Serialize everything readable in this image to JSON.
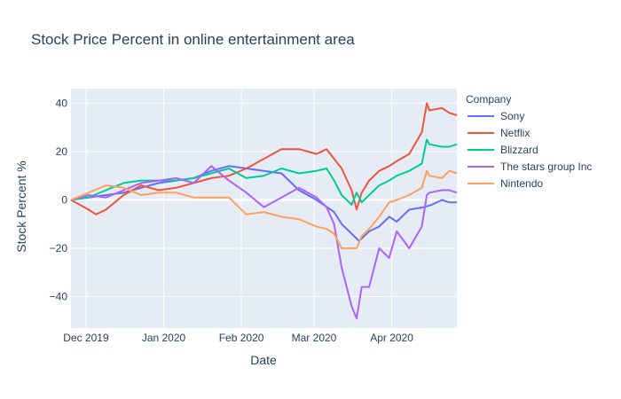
{
  "chart_data": {
    "type": "line",
    "title": "Stock Price Percent in online entertainment area",
    "xlabel": "Date",
    "ylabel": "Stock Percent %",
    "legend_title": "Company",
    "legend_position": "right",
    "grid": true,
    "xlim": [
      "2019-11-25",
      "2020-04-27"
    ],
    "ylim": [
      -53,
      46
    ],
    "x_ticks": [
      {
        "value": "2019-12-01",
        "label": "Dec 2019"
      },
      {
        "value": "2020-01-01",
        "label": "Jan 2020"
      },
      {
        "value": "2020-02-01",
        "label": "Feb 2020"
      },
      {
        "value": "2020-03-01",
        "label": "Mar 2020"
      },
      {
        "value": "2020-04-01",
        "label": "Apr 2020"
      }
    ],
    "y_ticks": [
      -40,
      -20,
      0,
      20,
      40
    ],
    "series": [
      {
        "name": "Sony",
        "color": "#636efa",
        "points": [
          [
            "2019-11-25",
            0
          ],
          [
            "2019-12-02",
            1
          ],
          [
            "2019-12-09",
            2
          ],
          [
            "2019-12-16",
            3
          ],
          [
            "2019-12-23",
            5
          ],
          [
            "2019-12-30",
            7
          ],
          [
            "2020-01-06",
            8
          ],
          [
            "2020-01-13",
            9
          ],
          [
            "2020-01-20",
            12
          ],
          [
            "2020-01-27",
            14
          ],
          [
            "2020-02-03",
            13
          ],
          [
            "2020-02-10",
            12
          ],
          [
            "2020-02-17",
            11
          ],
          [
            "2020-02-24",
            4
          ],
          [
            "2020-03-02",
            0
          ],
          [
            "2020-03-09",
            -5
          ],
          [
            "2020-03-12",
            -10
          ],
          [
            "2020-03-16",
            -14
          ],
          [
            "2020-03-19",
            -17
          ],
          [
            "2020-03-23",
            -13
          ],
          [
            "2020-03-27",
            -11
          ],
          [
            "2020-03-31",
            -7
          ],
          [
            "2020-04-03",
            -9
          ],
          [
            "2020-04-08",
            -4
          ],
          [
            "2020-04-14",
            -3
          ],
          [
            "2020-04-17",
            -2
          ],
          [
            "2020-04-21",
            0
          ],
          [
            "2020-04-24",
            -1
          ],
          [
            "2020-04-27",
            -1
          ]
        ]
      },
      {
        "name": "Netflix",
        "color": "#ef553b",
        "points": [
          [
            "2019-11-25",
            0
          ],
          [
            "2019-12-02",
            -4
          ],
          [
            "2019-12-05",
            -6
          ],
          [
            "2019-12-09",
            -4
          ],
          [
            "2019-12-16",
            2
          ],
          [
            "2019-12-23",
            6
          ],
          [
            "2019-12-30",
            4
          ],
          [
            "2020-01-06",
            5
          ],
          [
            "2020-01-13",
            7
          ],
          [
            "2020-01-20",
            9
          ],
          [
            "2020-01-27",
            10
          ],
          [
            "2020-02-03",
            13
          ],
          [
            "2020-02-10",
            17
          ],
          [
            "2020-02-17",
            21
          ],
          [
            "2020-02-24",
            21
          ],
          [
            "2020-03-02",
            19
          ],
          [
            "2020-03-06",
            21
          ],
          [
            "2020-03-09",
            17
          ],
          [
            "2020-03-12",
            13
          ],
          [
            "2020-03-16",
            4
          ],
          [
            "2020-03-18",
            -4
          ],
          [
            "2020-03-20",
            3
          ],
          [
            "2020-03-23",
            8
          ],
          [
            "2020-03-27",
            12
          ],
          [
            "2020-03-31",
            14
          ],
          [
            "2020-04-03",
            16
          ],
          [
            "2020-04-08",
            19
          ],
          [
            "2020-04-13",
            28
          ],
          [
            "2020-04-15",
            40
          ],
          [
            "2020-04-16",
            37
          ],
          [
            "2020-04-21",
            38
          ],
          [
            "2020-04-24",
            36
          ],
          [
            "2020-04-27",
            35
          ]
        ]
      },
      {
        "name": "Blizzard",
        "color": "#00cc96",
        "points": [
          [
            "2019-11-25",
            0
          ],
          [
            "2019-12-02",
            1
          ],
          [
            "2019-12-09",
            4
          ],
          [
            "2019-12-16",
            7
          ],
          [
            "2019-12-23",
            8
          ],
          [
            "2019-12-30",
            8
          ],
          [
            "2020-01-06",
            8
          ],
          [
            "2020-01-13",
            9
          ],
          [
            "2020-01-20",
            11
          ],
          [
            "2020-01-27",
            13
          ],
          [
            "2020-02-03",
            9
          ],
          [
            "2020-02-10",
            10
          ],
          [
            "2020-02-17",
            13
          ],
          [
            "2020-02-24",
            11
          ],
          [
            "2020-03-02",
            12
          ],
          [
            "2020-03-06",
            13
          ],
          [
            "2020-03-09",
            8
          ],
          [
            "2020-03-12",
            2
          ],
          [
            "2020-03-16",
            -2
          ],
          [
            "2020-03-18",
            3
          ],
          [
            "2020-03-20",
            -1
          ],
          [
            "2020-03-23",
            2
          ],
          [
            "2020-03-27",
            6
          ],
          [
            "2020-03-31",
            8
          ],
          [
            "2020-04-03",
            10
          ],
          [
            "2020-04-08",
            12
          ],
          [
            "2020-04-13",
            15
          ],
          [
            "2020-04-15",
            25
          ],
          [
            "2020-04-16",
            23
          ],
          [
            "2020-04-21",
            22
          ],
          [
            "2020-04-24",
            22
          ],
          [
            "2020-04-27",
            23
          ]
        ]
      },
      {
        "name": "The stars group Inc",
        "color": "#ab63fa",
        "points": [
          [
            "2019-11-25",
            0
          ],
          [
            "2019-12-02",
            2
          ],
          [
            "2019-12-09",
            1
          ],
          [
            "2019-12-16",
            4
          ],
          [
            "2019-12-23",
            7
          ],
          [
            "2019-12-30",
            8
          ],
          [
            "2020-01-06",
            9
          ],
          [
            "2020-01-13",
            7
          ],
          [
            "2020-01-20",
            14
          ],
          [
            "2020-01-27",
            8
          ],
          [
            "2020-02-03",
            3
          ],
          [
            "2020-02-10",
            -3
          ],
          [
            "2020-02-17",
            1
          ],
          [
            "2020-02-24",
            5
          ],
          [
            "2020-03-02",
            1
          ],
          [
            "2020-03-06",
            -3
          ],
          [
            "2020-03-09",
            -10
          ],
          [
            "2020-03-12",
            -28
          ],
          [
            "2020-03-16",
            -44
          ],
          [
            "2020-03-18",
            -49
          ],
          [
            "2020-03-20",
            -36
          ],
          [
            "2020-03-23",
            -36
          ],
          [
            "2020-03-27",
            -20
          ],
          [
            "2020-03-31",
            -24
          ],
          [
            "2020-04-03",
            -13
          ],
          [
            "2020-04-08",
            -20
          ],
          [
            "2020-04-13",
            -11
          ],
          [
            "2020-04-15",
            2
          ],
          [
            "2020-04-16",
            3
          ],
          [
            "2020-04-21",
            4
          ],
          [
            "2020-04-24",
            4
          ],
          [
            "2020-04-27",
            3
          ]
        ]
      },
      {
        "name": "Nintendo",
        "color": "#ffa15a",
        "points": [
          [
            "2019-11-25",
            0
          ],
          [
            "2019-12-02",
            3
          ],
          [
            "2019-12-09",
            6
          ],
          [
            "2019-12-16",
            5
          ],
          [
            "2019-12-23",
            2
          ],
          [
            "2019-12-30",
            3
          ],
          [
            "2020-01-06",
            3
          ],
          [
            "2020-01-13",
            1
          ],
          [
            "2020-01-20",
            1
          ],
          [
            "2020-01-27",
            1
          ],
          [
            "2020-02-03",
            -6
          ],
          [
            "2020-02-10",
            -5
          ],
          [
            "2020-02-17",
            -7
          ],
          [
            "2020-02-24",
            -8
          ],
          [
            "2020-03-02",
            -11
          ],
          [
            "2020-03-06",
            -12
          ],
          [
            "2020-03-09",
            -14
          ],
          [
            "2020-03-12",
            -20
          ],
          [
            "2020-03-16",
            -20
          ],
          [
            "2020-03-18",
            -20
          ],
          [
            "2020-03-20",
            -15
          ],
          [
            "2020-03-23",
            -12
          ],
          [
            "2020-03-27",
            -7
          ],
          [
            "2020-03-31",
            -1
          ],
          [
            "2020-04-03",
            0
          ],
          [
            "2020-04-08",
            2
          ],
          [
            "2020-04-13",
            5
          ],
          [
            "2020-04-15",
            12
          ],
          [
            "2020-04-16",
            10
          ],
          [
            "2020-04-21",
            9
          ],
          [
            "2020-04-24",
            12
          ],
          [
            "2020-04-27",
            11
          ]
        ]
      }
    ]
  }
}
